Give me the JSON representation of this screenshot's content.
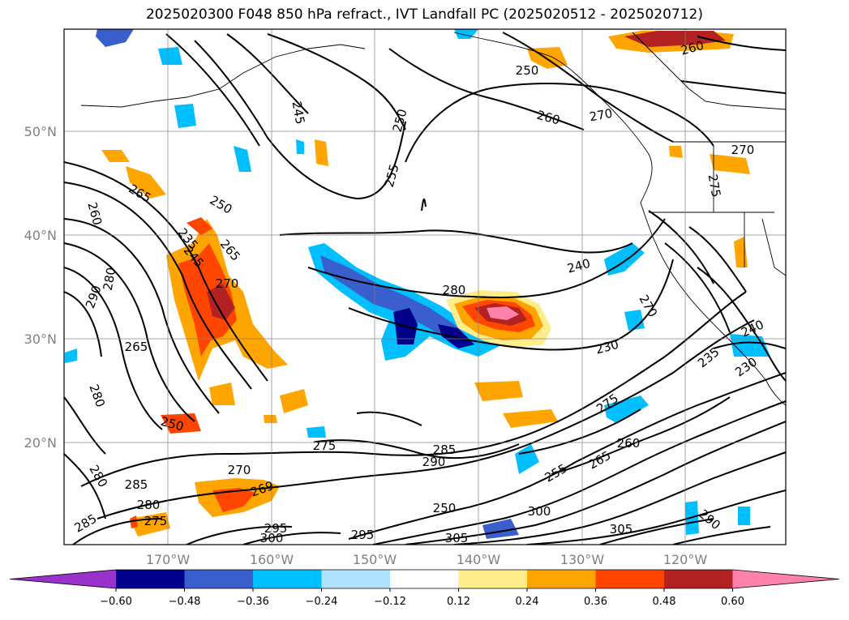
{
  "title": "2025020300 F048 850 hPa refract., IVT Landfall PC (2025020512 - 2025020712)",
  "latitude_labels": [
    "50°N",
    "40°N",
    "30°N",
    "20°N"
  ],
  "longitude_labels": [
    "170°W",
    "160°W",
    "150°W",
    "140°W",
    "130°W",
    "120°W"
  ],
  "colorbar": {
    "colors": [
      "#9932cc",
      "#00008b",
      "#3a5fcd",
      "#00bfff",
      "#b0e2ff",
      "#ffffff",
      "#ffec8b",
      "#ffa500",
      "#ff4500",
      "#b22222",
      "#ff82ab"
    ],
    "ticks": [
      "−0.60",
      "−0.48",
      "−0.36",
      "−0.24",
      "−0.12",
      "0.12",
      "0.24",
      "0.36",
      "0.48",
      "0.60"
    ]
  },
  "contour_labels": [
    "260",
    "250",
    "245",
    "250",
    "260",
    "270",
    "255",
    "270",
    "275",
    "260",
    "265",
    "250",
    "235",
    "245",
    "265",
    "270",
    "240",
    "290",
    "280",
    "265",
    "270",
    "280",
    "230",
    "240",
    "235",
    "230",
    "275",
    "255",
    "280",
    "275",
    "260",
    "285",
    "290",
    "280",
    "270",
    "285",
    "269",
    "280",
    "275",
    "250",
    "305",
    "265",
    "300",
    "290",
    "305",
    "285",
    "295",
    "300",
    "295",
    "250"
  ]
}
